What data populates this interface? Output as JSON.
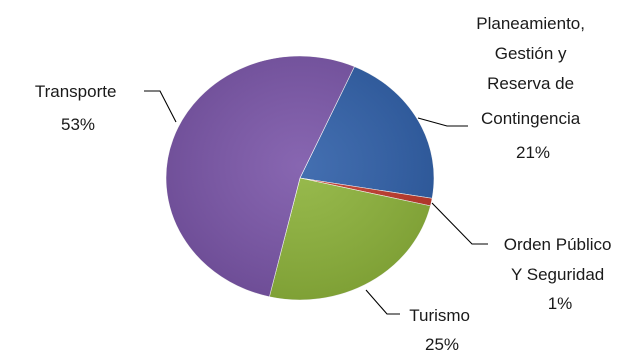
{
  "chart_data": {
    "type": "pie",
    "title": "",
    "slices": [
      {
        "label_lines": [
          "Planeamiento,",
          "Gestión  y",
          "Reserva de",
          "Contingencia"
        ],
        "value_label": "21%",
        "value": 21,
        "color": "#2F5FA8"
      },
      {
        "label_lines": [
          "Orden Público",
          "Y Seguridad"
        ],
        "value_label": "1%",
        "value": 1,
        "color": "#C0392B"
      },
      {
        "label_lines": [
          "Turismo"
        ],
        "value_label": "25%",
        "value": 25,
        "color": "#8DB33A"
      },
      {
        "label_lines": [
          "Transporte"
        ],
        "value_label": "53%",
        "value": 53,
        "color": "#7A55A8"
      }
    ],
    "legend": "none"
  }
}
